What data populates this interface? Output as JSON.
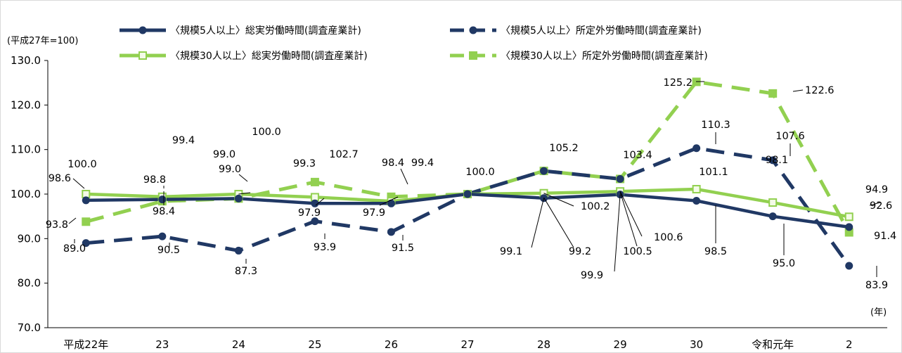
{
  "chart_data": {
    "type": "line",
    "unit_label": "(平成27年=100)",
    "x_unit_label": "(年)",
    "categories": [
      "平成22年",
      "23",
      "24",
      "25",
      "26",
      "27",
      "28",
      "29",
      "30",
      "令和元年",
      "2"
    ],
    "ylim": [
      70,
      130
    ],
    "yticks": [
      "70.0",
      "80.0",
      "90.0",
      "100.0",
      "110.0",
      "120.0",
      "130.0"
    ],
    "grid": false,
    "legend_position": "top",
    "series": [
      {
        "name": "〈規模5人以上〉総実労働時間(調査産業計)",
        "values": [
          98.6,
          98.8,
          99.0,
          97.9,
          97.9,
          100.0,
          99.1,
          99.9,
          98.5,
          95.0,
          92.6
        ],
        "labels": [
          "98.6",
          "98.8",
          "99.0",
          "97.9",
          "97.9",
          "",
          "99.1",
          "99.9",
          "98.5",
          "95.0",
          "92.6"
        ],
        "color": "#203864",
        "style": "solid",
        "marker": "circle"
      },
      {
        "name": "〈規模5人以上〉所定外労働時間(調査産業計)",
        "values": [
          89.0,
          90.5,
          87.3,
          93.9,
          91.5,
          100.0,
          105.2,
          103.4,
          110.3,
          107.6,
          83.9
        ],
        "labels": [
          "89.0",
          "90.5",
          "87.3",
          "93.9",
          "91.5",
          "",
          "",
          "",
          "110.3",
          "107.6",
          "83.9"
        ],
        "color": "#203864",
        "style": "dashed",
        "marker": "circle"
      },
      {
        "name": "〈規模30人以上〉総実労働時間(調査産業計)",
        "values": [
          100.0,
          99.4,
          100.0,
          99.3,
          98.4,
          100.0,
          100.2,
          100.6,
          101.1,
          98.1,
          94.9
        ],
        "labels": [
          "100.0",
          "99.4",
          "100.0",
          "99.3",
          "98.4",
          "100.0",
          "100.2",
          "100.6",
          "101.1",
          "98.1",
          "94.9"
        ],
        "color": "#92d050",
        "style": "solid",
        "marker": "square-open"
      },
      {
        "name": "〈規模30人以上〉所定外労働時間(調査産業計)",
        "values": [
          93.8,
          98.4,
          99.0,
          102.7,
          99.4,
          100.0,
          105.2,
          103.4,
          125.2,
          122.6,
          91.4
        ],
        "labels": [
          "93.8",
          "98.4",
          "99.0",
          "102.7",
          "99.4",
          "",
          "105.2",
          "103.4",
          "125.2",
          "122.6",
          "91.4"
        ],
        "color": "#92d050",
        "style": "dashed",
        "marker": "square"
      }
    ],
    "extra_labels": [
      "99.2",
      "100.5"
    ]
  }
}
